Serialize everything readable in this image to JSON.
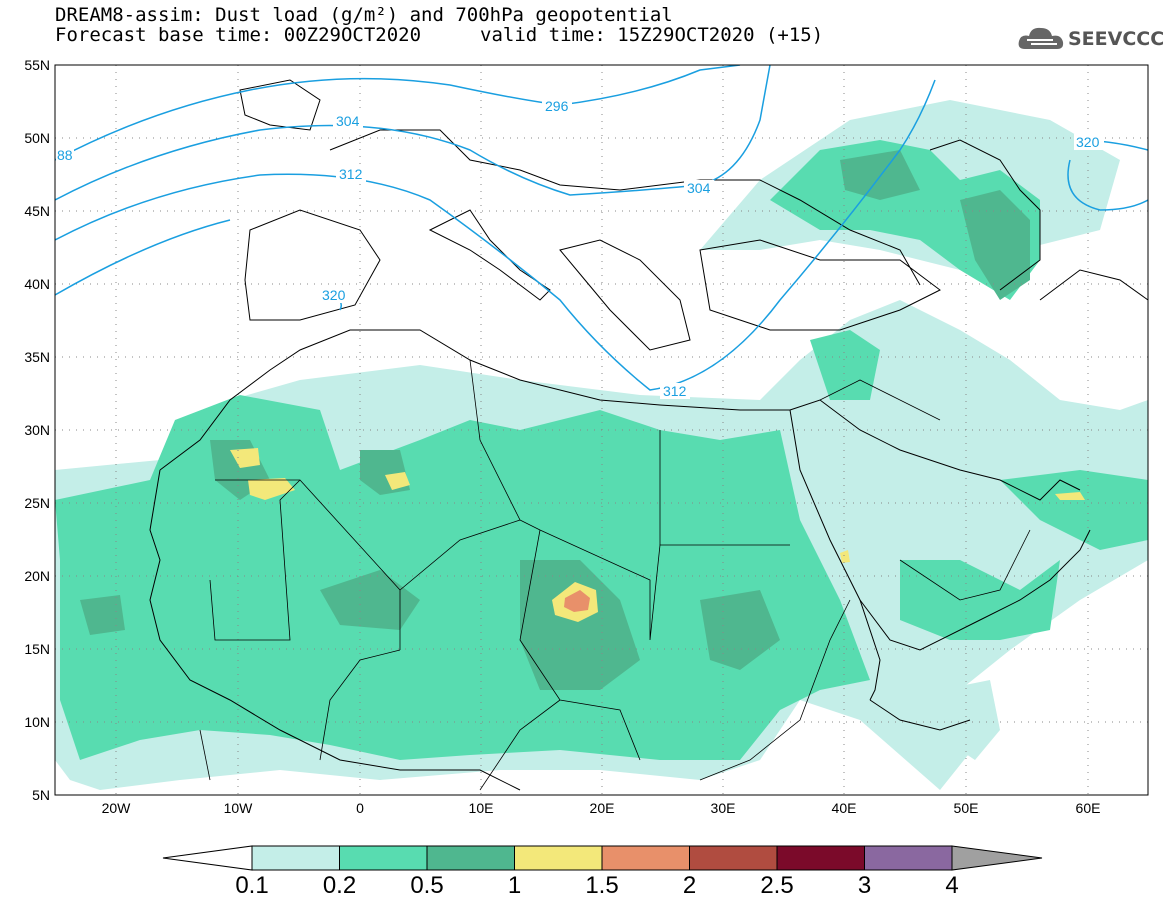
{
  "header": {
    "line1": "DREAM8-assim: Dust load (g/m²) and 700hPa geopotential",
    "line2_left": "Forecast base time: 00Z29OCT2020",
    "line2_right": "valid time: 15Z29OCT2020 (+15)"
  },
  "logo": {
    "text": "SEEVCCC",
    "icon": "cloud-logo-icon"
  },
  "map": {
    "lat_labels": [
      "55N",
      "50N",
      "45N",
      "40N",
      "35N",
      "30N",
      "25N",
      "20N",
      "15N",
      "10N",
      "5N"
    ],
    "lon_labels": [
      "20W",
      "10W",
      "0",
      "10E",
      "20E",
      "30E",
      "40E",
      "50E",
      "60E"
    ],
    "contour_labels": [
      "296",
      "304",
      "304",
      "312",
      "312",
      "320",
      "320",
      "88"
    ],
    "colors": {
      "land_border": "#000000",
      "contour": "#1a9fe0",
      "grid": "#888888"
    }
  },
  "colorbar": {
    "labels": [
      "0.1",
      "0.2",
      "0.5",
      "1",
      "1.5",
      "2",
      "2.5",
      "3",
      "4"
    ],
    "colors": [
      "#c4eee8",
      "#58dcb0",
      "#4fb78f",
      "#f3e87a",
      "#e8906a",
      "#b04c40",
      "#7b0a2a",
      "#8a68a0"
    ],
    "under_color": "#ffffff",
    "over_color": "#a0a0a0"
  }
}
